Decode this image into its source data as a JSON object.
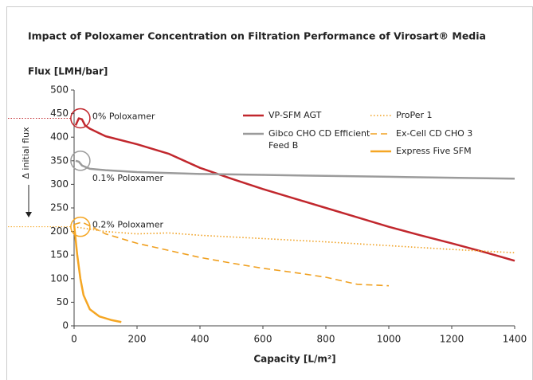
{
  "chart_data": {
    "type": "line",
    "title": "Impact of Poloxamer Concentration on Filtration Performance of Virosart® Media",
    "ylabel": "Flux [LMH/bar]",
    "xlabel": "Capacity [L/m²]",
    "xlim": [
      0,
      1400
    ],
    "xticks": [
      0,
      200,
      400,
      600,
      800,
      1000,
      1200,
      1400
    ],
    "ylim": [
      0,
      500
    ],
    "yticks": [
      0,
      50,
      100,
      150,
      200,
      250,
      300,
      350,
      400,
      450,
      500
    ],
    "arrow_label": "Δ initial flux",
    "annotations": [
      {
        "text": "0% Poloxamer",
        "x": 20,
        "y": 440,
        "color": "#c1272d"
      },
      {
        "text": "0.1% Poloxamer",
        "x": 20,
        "y": 350,
        "color": "#9b9b9b"
      },
      {
        "text": "0.2% Poloxamer",
        "x": 20,
        "y": 210,
        "color": "#f5a623"
      }
    ],
    "series": [
      {
        "name": "VP-SFM AGT",
        "color": "#c1272d",
        "style": "solid",
        "x": [
          5,
          15,
          25,
          35,
          50,
          100,
          200,
          300,
          400,
          500,
          600,
          700,
          800,
          900,
          1000,
          1100,
          1200,
          1300,
          1400
        ],
        "values": [
          425,
          440,
          438,
          425,
          418,
          402,
          385,
          365,
          335,
          312,
          290,
          270,
          250,
          230,
          210,
          192,
          175,
          157,
          138
        ]
      },
      {
        "name": "Gibco CHO CD Efficient Feed B",
        "color": "#9b9b9b",
        "style": "solid",
        "x": [
          5,
          15,
          25,
          50,
          100,
          200,
          400,
          600,
          800,
          1000,
          1200,
          1400
        ],
        "values": [
          350,
          348,
          340,
          333,
          330,
          326,
          322,
          320,
          318,
          316,
          314,
          312
        ]
      },
      {
        "name": "ProPer 1",
        "color": "#f0a020",
        "style": "dotted",
        "x": [
          0,
          100,
          200,
          300,
          400,
          600,
          800,
          1000,
          1200,
          1400
        ],
        "values": [
          210,
          200,
          195,
          197,
          192,
          185,
          178,
          170,
          162,
          155
        ]
      },
      {
        "name": "Ex-Cell CD CHO 3",
        "color": "#f0a020",
        "style": "dashed",
        "x": [
          0,
          25,
          100,
          200,
          300,
          400,
          500,
          600,
          700,
          800,
          900,
          1000
        ],
        "values": [
          215,
          220,
          195,
          175,
          160,
          145,
          133,
          122,
          113,
          103,
          88,
          85
        ]
      },
      {
        "name": "Express Five SFM",
        "color": "#f5a623",
        "style": "solid",
        "x": [
          0,
          10,
          20,
          30,
          50,
          80,
          120,
          150
        ],
        "values": [
          215,
          150,
          100,
          65,
          35,
          20,
          12,
          8
        ]
      }
    ]
  }
}
